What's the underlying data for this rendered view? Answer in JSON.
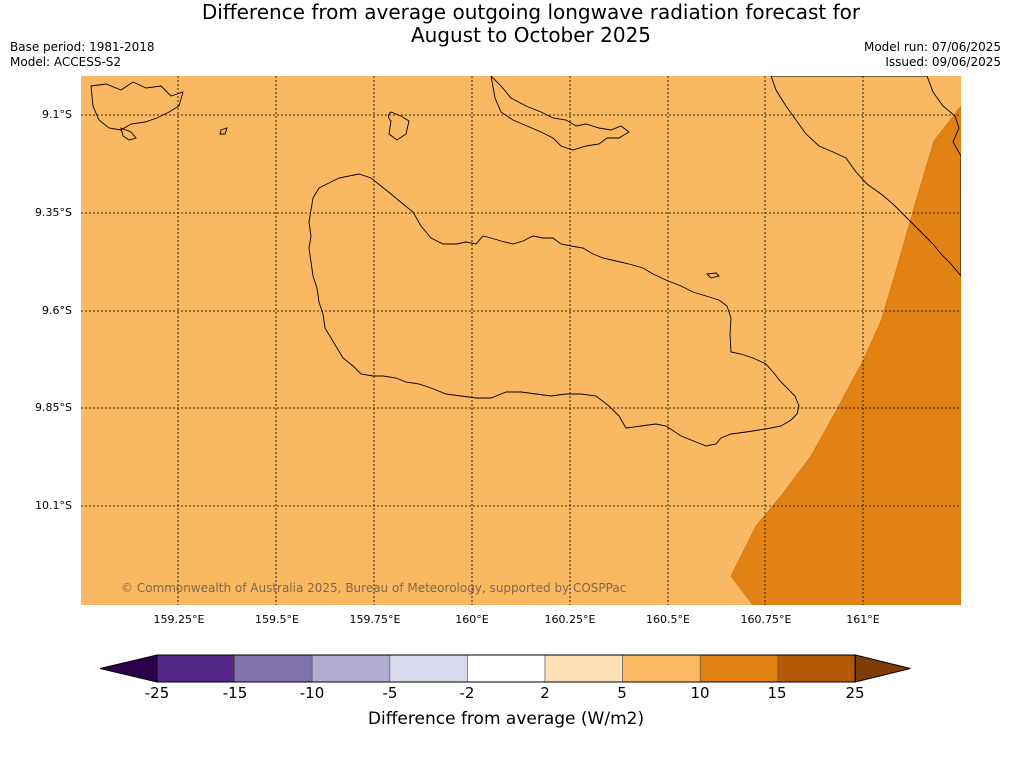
{
  "title": "Difference from average outgoing longwave radiation forecast for\nAugust to October 2025",
  "meta": {
    "base_period": "Base period: 1981-2018",
    "model": "Model: ACCESS-S2",
    "model_run": "Model run: 07/06/2025",
    "issued": "Issued: 09/06/2025"
  },
  "map": {
    "copyright": "© Commonwealth of Australia 2025, Bureau of Meteorology, supported by COSPPac",
    "lat_labels": [
      "9.1°S",
      "9.35°S",
      "9.6°S",
      "9.85°S",
      "10.1°S"
    ],
    "lon_labels": [
      "159.25°E",
      "159.5°E",
      "159.75°E",
      "160°E",
      "160.25°E",
      "160.5°E",
      "160.75°E",
      "161°E"
    ],
    "colors": {
      "land_fill_5_10": "#fbb862",
      "region_10_15": "#e08214",
      "coastline": "#000000"
    }
  },
  "colorbar": {
    "ticks": [
      "-25",
      "-15",
      "-10",
      "-5",
      "-2",
      "2",
      "5",
      "10",
      "15",
      "25"
    ],
    "colors": [
      "#2d004b",
      "#542788",
      "#8073ac",
      "#b2abd2",
      "#d8daeb",
      "#ffffff",
      "#fee0b6",
      "#fdb863",
      "#e08214",
      "#b35806",
      "#7f3b08"
    ],
    "label": "Difference from average (W/m2)"
  }
}
